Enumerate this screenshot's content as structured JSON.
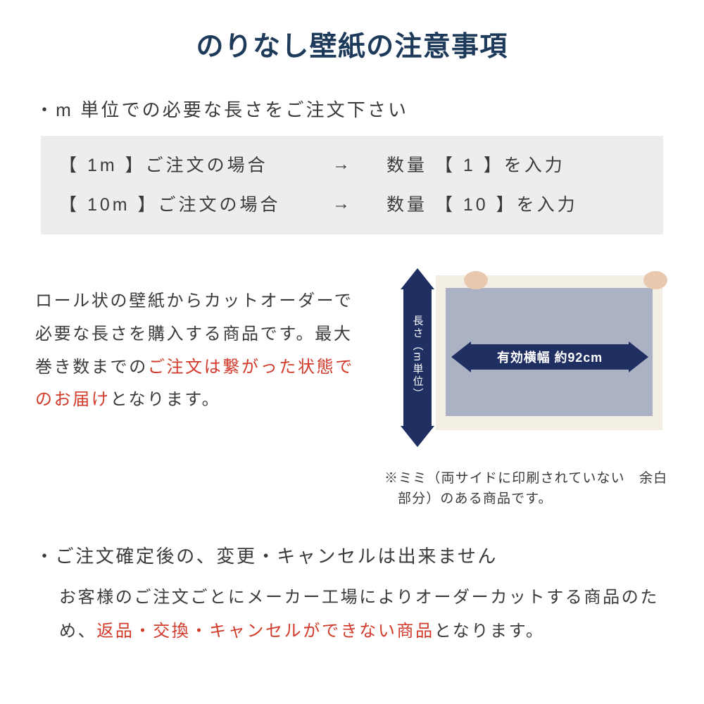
{
  "colors": {
    "title": "#1e3a5a",
    "body_text": "#3a3a3a",
    "highlight": "#d23a2a",
    "qty_box_bg": "#ededed",
    "arrow": "#1f2f62",
    "panel_fill": "#aab2c4",
    "panel_border": "#f4efe4"
  },
  "font_sizes": {
    "title": 39,
    "bullet": 26,
    "qty_row": 25,
    "paragraph": 24,
    "mimi_note": 19,
    "sec2_head": 26,
    "sec2_para": 24
  },
  "title": "のりなし壁紙の注意事項",
  "section1": {
    "bullet": "・m 単位での必要な長さをご注文下さい",
    "qty_rows": [
      {
        "left": "【 1m 】ご注文の場合",
        "arrow": "→",
        "right": "数量 【 1 】を入力"
      },
      {
        "left": "【 10m 】ご注文の場合",
        "arrow": "→",
        "right": "数量 【 10 】を入力"
      }
    ],
    "paragraph_pre": "ロール状の壁紙からカットオーダーで必要な長さを購入する商品です。最大巻き数までの",
    "paragraph_hl": "ご注文は繋がった状態でのお届け",
    "paragraph_post": "となります。",
    "diagram": {
      "v_label": "長さ（m単位）",
      "h_label": "有効横幅 約92cm",
      "mimi_note": "※ミミ（両サイドに印刷されていない　余白部分）のある商品です。"
    }
  },
  "section2": {
    "bullet": "・ご注文確定後の、変更・キャンセルは出来ません",
    "para_pre": "お客様のご注文ごとにメーカー工場によりオーダーカットする商品のため、",
    "para_hl": "返品・交換・キャンセルができない商品",
    "para_post": "となります。"
  }
}
